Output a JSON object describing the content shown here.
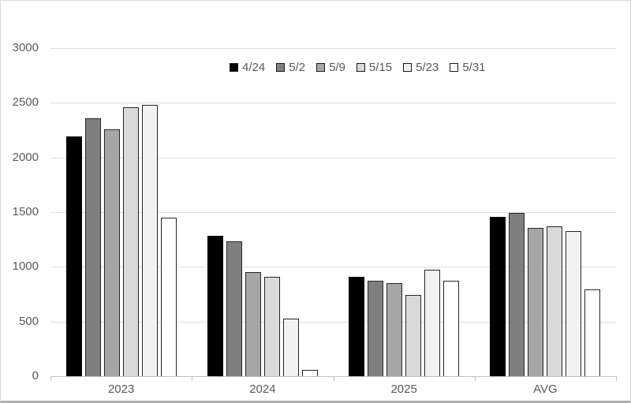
{
  "chart_data": {
    "type": "bar",
    "title": "",
    "categories": [
      "2023",
      "2024",
      "2025",
      "AVG"
    ],
    "series": [
      {
        "name": "4/24",
        "color": "#000000",
        "values": [
          2190,
          1285,
          910,
          1460
        ]
      },
      {
        "name": "5/2",
        "color": "#7f7f7f",
        "values": [
          2360,
          1235,
          870,
          1490
        ]
      },
      {
        "name": "5/9",
        "color": "#a6a6a6",
        "values": [
          2260,
          955,
          850,
          1355
        ]
      },
      {
        "name": "5/15",
        "color": "#d9d9d9",
        "values": [
          2460,
          910,
          745,
          1370
        ]
      },
      {
        "name": "5/23",
        "color": "#f2f2f2",
        "values": [
          2480,
          525,
          975,
          1325
        ]
      },
      {
        "name": "5/31",
        "color": "#ffffff",
        "values": [
          1450,
          55,
          870,
          790
        ]
      }
    ],
    "y_axis": {
      "min": 0,
      "max": 3000,
      "step": 500,
      "ticks": [
        "0",
        "500",
        "1000",
        "1500",
        "2000",
        "2500",
        "3000"
      ]
    },
    "x_axis": {
      "labels": [
        "2023",
        "2024",
        "2025",
        "AVG"
      ]
    },
    "grid": true,
    "legend_position": "top-center",
    "colors": {
      "gridline": "#dedede",
      "axis_line": "#bfbfbf",
      "tick_label": "#595959",
      "bar_border": "#262626",
      "frame_border": "#d9d9d9",
      "frame_bottom_border": "#b0b0b0",
      "background": "#ffffff"
    }
  }
}
